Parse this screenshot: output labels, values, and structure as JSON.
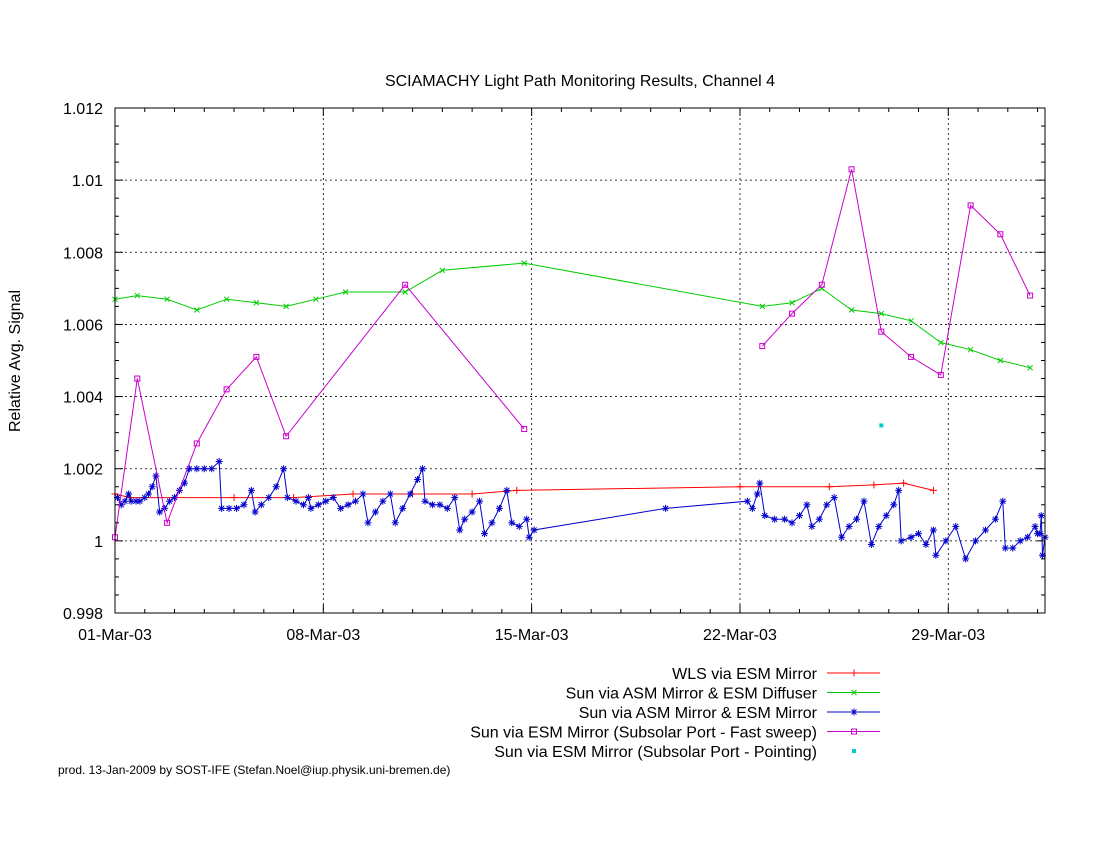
{
  "chart_data": {
    "type": "line",
    "title": "SCIAMACHY Light Path Monitoring Results, Channel 4",
    "xlabel": "",
    "ylabel": "Relative Avg. Signal",
    "x_unit": "date",
    "xlim": [
      "2003-03-01",
      "2003-04-01 06:00"
    ],
    "ylim": [
      0.998,
      1.012
    ],
    "y_ticks": [
      0.998,
      1,
      1.002,
      1.004,
      1.006,
      1.008,
      1.01,
      1.012
    ],
    "y_tick_labels": [
      "0.998",
      "1",
      "1.002",
      "1.004",
      "1.006",
      "1.008",
      "1.01",
      "1.012"
    ],
    "x_ticks": [
      "2003-03-01",
      "2003-03-08",
      "2003-03-15",
      "2003-03-22",
      "2003-03-29"
    ],
    "x_tick_labels": [
      "01-Mar-03",
      "08-Mar-03",
      "15-Mar-03",
      "22-Mar-03",
      "29-Mar-03"
    ],
    "grid": true,
    "legend_position": "below-right",
    "series": [
      {
        "name": "WLS via ESM Mirror",
        "color": "#ff0000",
        "style": "line-points",
        "marker": "plus",
        "points": [
          [
            "2003-03-01 00:00",
            1.0013
          ],
          [
            "2003-03-01 12:00",
            1.0012
          ],
          [
            "2003-03-03 00:00",
            1.0012
          ],
          [
            "2003-03-05 00:00",
            1.0012
          ],
          [
            "2003-03-07 00:00",
            1.0012
          ],
          [
            "2003-03-09 00:00",
            1.0013
          ],
          [
            "2003-03-11 00:00",
            1.0013
          ],
          [
            "2003-03-13 00:00",
            1.0013
          ],
          [
            "2003-03-14 12:00",
            1.0014
          ],
          [
            "2003-03-22 00:00",
            1.0015
          ],
          [
            "2003-03-25 00:00",
            1.0015
          ],
          [
            "2003-03-26 12:00",
            1.00155
          ],
          [
            "2003-03-27 12:00",
            1.0016
          ],
          [
            "2003-03-28 12:00",
            1.0014
          ]
        ]
      },
      {
        "name": "Sun via ASM Mirror & ESM Diffuser",
        "color": "#00cc00",
        "style": "line-points",
        "marker": "cross",
        "points": [
          [
            "2003-03-01 00:00",
            1.0067
          ],
          [
            "2003-03-01 18:00",
            1.0068
          ],
          [
            "2003-03-02 18:00",
            1.0067
          ],
          [
            "2003-03-03 18:00",
            1.0064
          ],
          [
            "2003-03-04 18:00",
            1.0067
          ],
          [
            "2003-03-05 18:00",
            1.0066
          ],
          [
            "2003-03-06 18:00",
            1.0065
          ],
          [
            "2003-03-07 18:00",
            1.0067
          ],
          [
            "2003-03-08 18:00",
            1.0069
          ],
          [
            "2003-03-10 18:00",
            1.0069
          ],
          [
            "2003-03-12 00:00",
            1.0075
          ],
          [
            "2003-03-14 18:00",
            1.0077
          ],
          [
            "2003-03-22 18:00",
            1.0065
          ],
          [
            "2003-03-23 18:00",
            1.0066
          ],
          [
            "2003-03-24 18:00",
            1.007
          ],
          [
            "2003-03-25 18:00",
            1.0064
          ],
          [
            "2003-03-26 18:00",
            1.0063
          ],
          [
            "2003-03-27 18:00",
            1.0061
          ],
          [
            "2003-03-28 18:00",
            1.0055
          ],
          [
            "2003-03-29 18:00",
            1.0053
          ],
          [
            "2003-03-30 18:00",
            1.005
          ],
          [
            "2003-03-31 18:00",
            1.0048
          ]
        ]
      },
      {
        "name": "Sun via ASM Mirror & ESM Mirror",
        "color": "#0000cc",
        "style": "line-points",
        "marker": "star",
        "points": [
          [
            "2003-03-01 02:00",
            1.0012
          ],
          [
            "2003-03-01 05:00",
            1.001
          ],
          [
            "2003-03-01 08:00",
            1.0011
          ],
          [
            "2003-03-01 11:00",
            1.0013
          ],
          [
            "2003-03-01 13:00",
            1.0011
          ],
          [
            "2003-03-01 17:00",
            1.0011
          ],
          [
            "2003-03-01 20:00",
            1.0011
          ],
          [
            "2003-03-02 00:00",
            1.0012
          ],
          [
            "2003-03-02 03:00",
            1.0013
          ],
          [
            "2003-03-02 06:00",
            1.0015
          ],
          [
            "2003-03-02 09:00",
            1.0018
          ],
          [
            "2003-03-02 12:00",
            1.0008
          ],
          [
            "2003-03-02 16:00",
            1.0009
          ],
          [
            "2003-03-02 20:00",
            1.0011
          ],
          [
            "2003-03-03 00:00",
            1.0012
          ],
          [
            "2003-03-03 04:00",
            1.0014
          ],
          [
            "2003-03-03 08:00",
            1.0016
          ],
          [
            "2003-03-03 12:00",
            1.002
          ],
          [
            "2003-03-03 18:00",
            1.002
          ],
          [
            "2003-03-04 00:00",
            1.002
          ],
          [
            "2003-03-04 06:00",
            1.002
          ],
          [
            "2003-03-04 12:00",
            1.0022
          ],
          [
            "2003-03-04 14:00",
            1.0009
          ],
          [
            "2003-03-04 20:00",
            1.0009
          ],
          [
            "2003-03-05 02:00",
            1.0009
          ],
          [
            "2003-03-05 08:00",
            1.001
          ],
          [
            "2003-03-05 14:00",
            1.0014
          ],
          [
            "2003-03-05 17:00",
            1.0008
          ],
          [
            "2003-03-05 22:00",
            1.001
          ],
          [
            "2003-03-06 04:00",
            1.0012
          ],
          [
            "2003-03-06 10:00",
            1.0015
          ],
          [
            "2003-03-06 16:00",
            1.002
          ],
          [
            "2003-03-06 19:00",
            1.0012
          ],
          [
            "2003-03-07 02:00",
            1.0011
          ],
          [
            "2003-03-07 08:00",
            1.001
          ],
          [
            "2003-03-07 12:00",
            1.0012
          ],
          [
            "2003-03-07 14:00",
            1.0009
          ],
          [
            "2003-03-07 20:00",
            1.001
          ],
          [
            "2003-03-08 02:00",
            1.0011
          ],
          [
            "2003-03-08 08:00",
            1.0012
          ],
          [
            "2003-03-08 14:00",
            1.0009
          ],
          [
            "2003-03-08 20:00",
            1.001
          ],
          [
            "2003-03-09 02:00",
            1.0011
          ],
          [
            "2003-03-09 08:00",
            1.0013
          ],
          [
            "2003-03-09 12:00",
            1.0005
          ],
          [
            "2003-03-09 18:00",
            1.0008
          ],
          [
            "2003-03-10 00:00",
            1.0011
          ],
          [
            "2003-03-10 06:00",
            1.0013
          ],
          [
            "2003-03-10 10:00",
            1.0005
          ],
          [
            "2003-03-10 16:00",
            1.0009
          ],
          [
            "2003-03-10 22:00",
            1.0013
          ],
          [
            "2003-03-11 04:00",
            1.0017
          ],
          [
            "2003-03-11 08:00",
            1.002
          ],
          [
            "2003-03-11 10:00",
            1.0011
          ],
          [
            "2003-03-11 16:00",
            1.001
          ],
          [
            "2003-03-11 22:00",
            1.001
          ],
          [
            "2003-03-12 04:00",
            1.0009
          ],
          [
            "2003-03-12 10:00",
            1.0012
          ],
          [
            "2003-03-12 14:00",
            1.0003
          ],
          [
            "2003-03-12 18:00",
            1.0006
          ],
          [
            "2003-03-13 00:00",
            1.0008
          ],
          [
            "2003-03-13 06:00",
            1.0011
          ],
          [
            "2003-03-13 10:00",
            1.0002
          ],
          [
            "2003-03-13 16:00",
            1.0005
          ],
          [
            "2003-03-13 22:00",
            1.0009
          ],
          [
            "2003-03-14 04:00",
            1.0014
          ],
          [
            "2003-03-14 08:00",
            1.0005
          ],
          [
            "2003-03-14 14:00",
            1.0004
          ],
          [
            "2003-03-14 20:00",
            1.0006
          ],
          [
            "2003-03-14 22:00",
            1.0001
          ],
          [
            "2003-03-15 02:00",
            1.0003
          ],
          [
            "2003-03-19 12:00",
            1.0009
          ],
          [
            "2003-03-22 06:00",
            1.0011
          ],
          [
            "2003-03-22 10:00",
            1.0009
          ],
          [
            "2003-03-22 14:00",
            1.0013
          ],
          [
            "2003-03-22 16:00",
            1.0016
          ],
          [
            "2003-03-22 20:00",
            1.0007
          ],
          [
            "2003-03-23 04:00",
            1.0006
          ],
          [
            "2003-03-23 12:00",
            1.0006
          ],
          [
            "2003-03-23 18:00",
            1.0005
          ],
          [
            "2003-03-24 00:00",
            1.0007
          ],
          [
            "2003-03-24 06:00",
            1.001
          ],
          [
            "2003-03-24 10:00",
            1.0004
          ],
          [
            "2003-03-24 16:00",
            1.0006
          ],
          [
            "2003-03-24 22:00",
            1.001
          ],
          [
            "2003-03-25 04:00",
            1.0012
          ],
          [
            "2003-03-25 10:00",
            1.0001
          ],
          [
            "2003-03-25 16:00",
            1.0004
          ],
          [
            "2003-03-25 22:00",
            1.0006
          ],
          [
            "2003-03-26 04:00",
            1.0011
          ],
          [
            "2003-03-26 10:00",
            0.9999
          ],
          [
            "2003-03-26 16:00",
            1.0004
          ],
          [
            "2003-03-26 22:00",
            1.0007
          ],
          [
            "2003-03-27 04:00",
            1.001
          ],
          [
            "2003-03-27 08:00",
            1.0014
          ],
          [
            "2003-03-27 10:00",
            1.0
          ],
          [
            "2003-03-27 18:00",
            1.0001
          ],
          [
            "2003-03-28 00:00",
            1.0002
          ],
          [
            "2003-03-28 06:00",
            0.9999
          ],
          [
            "2003-03-28 12:00",
            1.0003
          ],
          [
            "2003-03-28 14:00",
            0.9996
          ],
          [
            "2003-03-28 22:00",
            1.0
          ],
          [
            "2003-03-29 06:00",
            1.0004
          ],
          [
            "2003-03-29 14:00",
            0.9995
          ],
          [
            "2003-03-29 22:00",
            1.0
          ],
          [
            "2003-03-30 06:00",
            1.0003
          ],
          [
            "2003-03-30 14:00",
            1.0006
          ],
          [
            "2003-03-30 20:00",
            1.0011
          ],
          [
            "2003-03-30 22:00",
            0.9998
          ],
          [
            "2003-03-31 04:00",
            0.9998
          ],
          [
            "2003-03-31 10:00",
            1.0
          ],
          [
            "2003-03-31 16:00",
            1.0001
          ],
          [
            "2003-03-31 22:00",
            1.0004
          ],
          [
            "2003-04-01 00:00",
            1.0002
          ],
          [
            "2003-04-01 02:00",
            1.0002
          ],
          [
            "2003-04-01 03:00",
            1.0007
          ],
          [
            "2003-04-01 04:00",
            0.9996
          ],
          [
            "2003-04-01 06:00",
            1.0001
          ]
        ]
      },
      {
        "name": "Sun via ESM Mirror (Subsolar Port - Fast sweep)",
        "color": "#cc00cc",
        "style": "line-points",
        "marker": "square",
        "points": [
          [
            "2003-03-01 00:00",
            1.0001
          ],
          [
            "2003-03-01 18:00",
            1.0045
          ],
          [
            "2003-03-02 18:00",
            1.0005
          ],
          [
            "2003-03-03 18:00",
            1.0027
          ],
          [
            "2003-03-04 18:00",
            1.0042
          ],
          [
            "2003-03-05 18:00",
            1.0051
          ],
          [
            "2003-03-06 18:00",
            1.0029
          ],
          [
            "2003-03-10 18:00",
            1.0071
          ],
          [
            "2003-03-14 18:00",
            1.0031
          ],
          null,
          [
            "2003-03-22 18:00",
            1.0054
          ],
          [
            "2003-03-23 18:00",
            1.0063
          ],
          [
            "2003-03-24 18:00",
            1.0071
          ],
          [
            "2003-03-25 18:00",
            1.0103
          ],
          [
            "2003-03-26 18:00",
            1.0058
          ],
          [
            "2003-03-27 18:00",
            1.0051
          ],
          [
            "2003-03-28 18:00",
            1.0046
          ],
          [
            "2003-03-29 18:00",
            1.0093
          ],
          [
            "2003-03-30 18:00",
            1.0085
          ],
          [
            "2003-03-31 18:00",
            1.0068
          ]
        ]
      },
      {
        "name": "Sun via ESM Mirror (Subsolar Port - Pointing)",
        "color": "#00cccc",
        "style": "points",
        "marker": "dot",
        "points": [
          [
            "2003-03-26 18:00",
            1.0032
          ]
        ]
      }
    ]
  },
  "footer": "prod. 13-Jan-2009 by SOST-IFE (Stefan.Noel@iup.physik.uni-bremen.de)"
}
